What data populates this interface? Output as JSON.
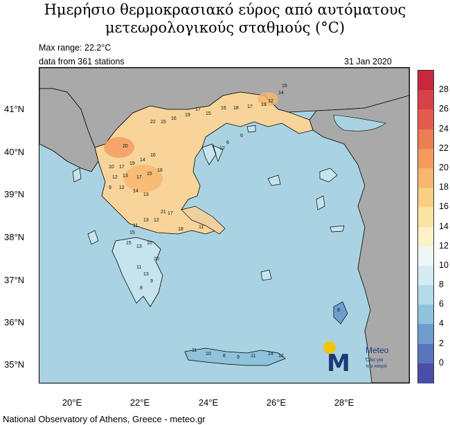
{
  "title": {
    "line1": "Ημερήσιο θερμοκρασιακό εύρος από αυτόματους",
    "line2": "μετεωρολογικούς σταθμούς (°C)"
  },
  "info": {
    "max_range": "Max range: 22.2°C",
    "stations": "data from 361 stations",
    "date": "31 Jan 2020"
  },
  "axes": {
    "lat_labels": [
      "41°N",
      "40°N",
      "39°N",
      "38°N",
      "37°N",
      "36°N",
      "35°N"
    ],
    "lon_labels": [
      "20°E",
      "22°E",
      "24°E",
      "26°E",
      "28°E"
    ]
  },
  "colorbar": {
    "labels": [
      "28",
      "26",
      "24",
      "22",
      "20",
      "18",
      "16",
      "14",
      "12",
      "10",
      "8",
      "6",
      "4",
      "2",
      "0"
    ],
    "colors": [
      "#c8283c",
      "#d8404a",
      "#e45a4e",
      "#ed7d55",
      "#f39a5e",
      "#f6b66e",
      "#f9cf86",
      "#fbe3a4",
      "#fdf1c8",
      "#eef7f8",
      "#d3ebf2",
      "#b2dbe8",
      "#8fc2dc",
      "#6e9ccd",
      "#5874bd",
      "#4a4ea8"
    ]
  },
  "logo": {
    "brand": "Meteo",
    "slogan_1": "Όλα για",
    "slogan_2": "τον καιρό"
  },
  "footer": "National Observatory of Athens, Greece - meteo.gr",
  "station_values": [
    "15",
    "14",
    "12",
    "19",
    "17",
    "18",
    "16",
    "15",
    "17",
    "19",
    "16",
    "15",
    "22",
    "20",
    "10",
    "17",
    "19",
    "14",
    "16",
    "12",
    "13",
    "17",
    "15",
    "18",
    "9",
    "12",
    "14",
    "13",
    "21",
    "17",
    "12",
    "13",
    "11",
    "15",
    "20",
    "13",
    "15",
    "10",
    "13",
    "11",
    "9",
    "8",
    "12",
    "6",
    "6",
    "11",
    "10",
    "8",
    "9",
    "11",
    "14",
    "12",
    "8",
    "18",
    "11"
  ]
}
